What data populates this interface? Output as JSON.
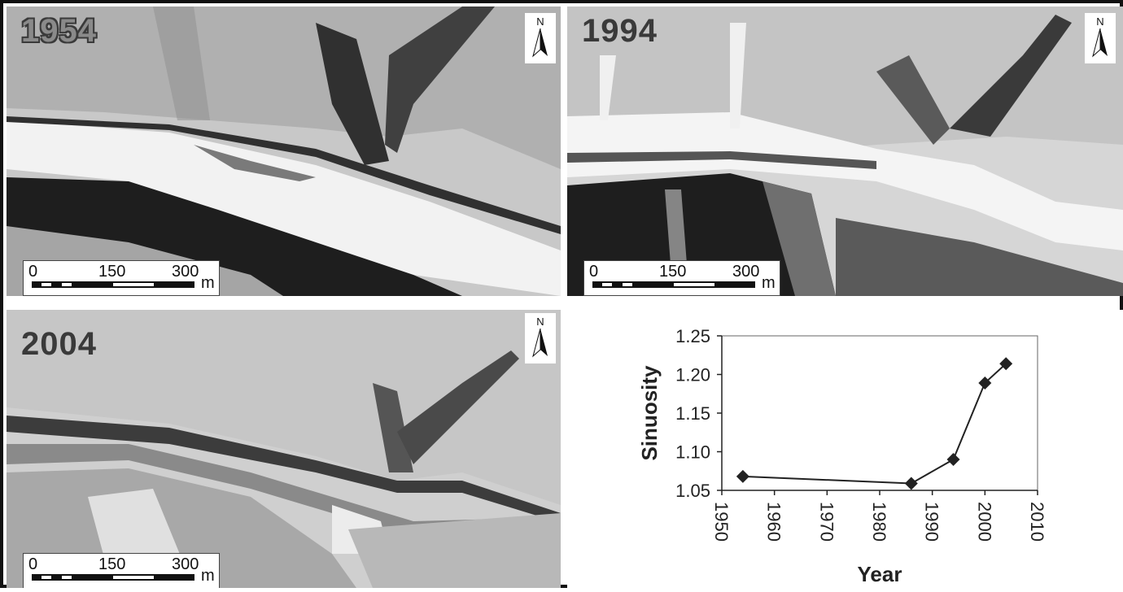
{
  "panels": [
    {
      "year": "1954",
      "north": "N",
      "scale": {
        "t0": "0",
        "t1": "150",
        "t2": "300",
        "unit": "m"
      }
    },
    {
      "year": "1994",
      "north": "N",
      "scale": {
        "t0": "0",
        "t1": "150",
        "t2": "300",
        "unit": "m"
      }
    },
    {
      "year": "2004",
      "north": "N",
      "scale": {
        "t0": "0",
        "t1": "150",
        "t2": "300",
        "unit": "m"
      }
    }
  ],
  "chart_data": {
    "type": "line",
    "title": "",
    "xlabel": "Year",
    "ylabel": "Sinuosity",
    "xlim": [
      1950,
      2010
    ],
    "ylim": [
      1.05,
      1.25
    ],
    "x_ticks": [
      "1950",
      "1960",
      "1970",
      "1980",
      "1990",
      "2000",
      "2010"
    ],
    "y_ticks": [
      "1.25",
      "1.20",
      "1.15",
      "1.10",
      "1.05"
    ],
    "marker": "diamond",
    "grid": false,
    "series": [
      {
        "x": [
          1954,
          1986,
          1994,
          2000,
          2004
        ],
        "values": [
          1.068,
          1.059,
          1.09,
          1.189,
          1.214
        ]
      }
    ],
    "colors": {
      "line": "#222222",
      "marker": "#222222",
      "axis": "#666666"
    }
  }
}
